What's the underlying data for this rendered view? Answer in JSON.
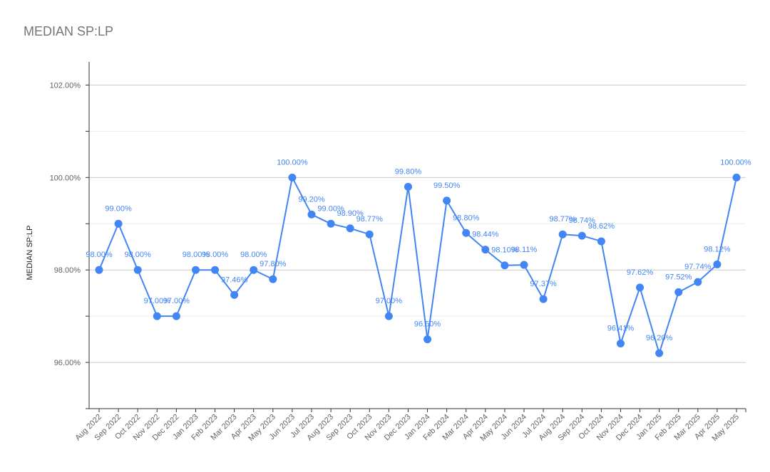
{
  "chart_data": {
    "type": "line",
    "title": "MEDIAN SP:LP",
    "xlabel": "",
    "ylabel": "MEDIAN SP:LP",
    "ylim": [
      95.0,
      102.5
    ],
    "yticks": [
      96,
      98,
      100,
      102
    ],
    "ytick_labels": [
      "96.00%",
      "98.00%",
      "100.00%",
      "102.00%"
    ],
    "grid": true,
    "legend": "none",
    "color": "#4285f4",
    "categories": [
      "Aug 2022",
      "Sep 2022",
      "Oct 2022",
      "Nov 2022",
      "Dec 2022",
      "Jan 2023",
      "Feb 2023",
      "Mar 2023",
      "Apr 2023",
      "May 2023",
      "Jun 2023",
      "Jul 2023",
      "Aug 2023",
      "Sep 2023",
      "Oct 2023",
      "Nov 2023",
      "Dec 2023",
      "Jan 2024",
      "Feb 2024",
      "Mar 2024",
      "Apr 2024",
      "May 2024",
      "Jun 2024",
      "Jul 2024",
      "Aug 2024",
      "Sep 2024",
      "Oct 2024",
      "Nov 2024",
      "Dec 2024",
      "Jan 2025",
      "Feb 2025",
      "Mar 2025",
      "Apr 2025",
      "May 2025"
    ],
    "values": [
      98.0,
      99.0,
      98.0,
      97.0,
      97.0,
      98.0,
      98.0,
      97.46,
      98.0,
      97.8,
      100.0,
      99.2,
      99.0,
      98.9,
      98.77,
      97.0,
      99.8,
      96.5,
      99.5,
      98.8,
      98.44,
      98.1,
      98.11,
      97.37,
      98.77,
      98.74,
      98.62,
      96.41,
      97.62,
      96.2,
      97.52,
      97.74,
      98.12,
      100.0
    ],
    "data_labels": [
      "98.00%",
      "99.00%",
      "98.00%",
      "97.00%",
      "97.00%",
      "98.00%",
      "98.00%",
      "97.46%",
      "98.00%",
      "97.80%",
      "100.00%",
      "99.20%",
      "99.00%",
      "98.90%",
      "98.77%",
      "97.00%",
      "99.80%",
      "96.50%",
      "99.50%",
      "98.80%",
      "98.44%",
      "98.10%",
      "98.11%",
      "97.37%",
      "98.77%",
      "98.74%",
      "98.62%",
      "96.41%",
      "97.62%",
      "96.20%",
      "97.52%",
      "97.74%",
      "98.12%",
      "100.00%"
    ]
  }
}
